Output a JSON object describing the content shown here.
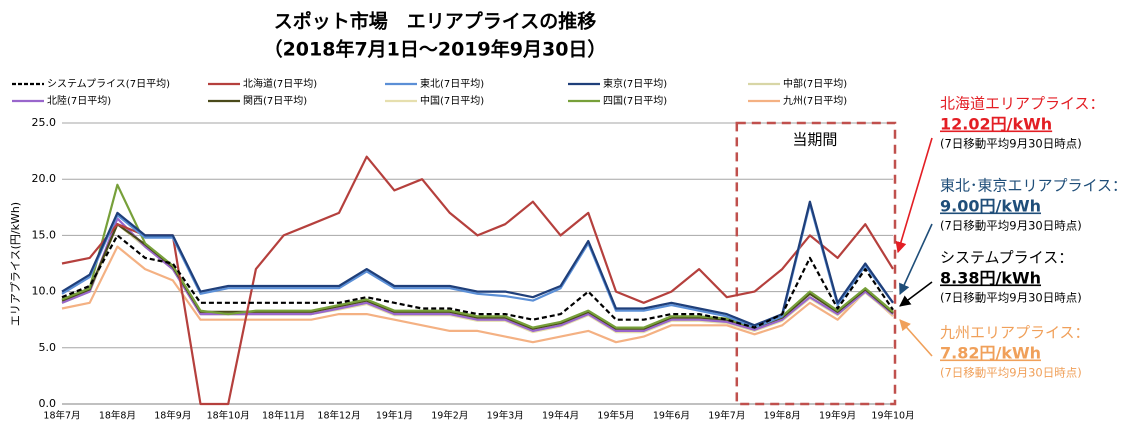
{
  "chart_data": {
    "type": "line",
    "title": "スポット市場　エリアプライスの推移",
    "subtitle": "（2018年7月1日～2019年9月30日）",
    "y_label": "エリアプライス(円/kWh)",
    "categories": [
      "18年7月",
      null,
      "18年8月",
      null,
      "18年9月",
      null,
      "18年10月",
      null,
      "18年11月",
      null,
      "18年12月",
      null,
      "19年1月",
      null,
      "19年2月",
      null,
      "19年3月",
      null,
      "19年4月",
      null,
      "19年5月",
      null,
      "19年6月",
      null,
      "19年7月",
      null,
      "19年8月",
      null,
      "19年9月",
      null,
      "19年10月"
    ],
    "ylim": [
      0,
      25
    ],
    "yticks": [
      {
        "value": 0,
        "label": "0.0"
      },
      {
        "value": 5,
        "label": "5.0"
      },
      {
        "value": 10,
        "label": "10.0"
      },
      {
        "value": 15,
        "label": "15.0"
      },
      {
        "value": 20,
        "label": "20.0"
      },
      {
        "value": 25,
        "label": "25.0"
      }
    ],
    "grid": true,
    "series": [
      {
        "name": "システムプライス(7日平均)",
        "color": "#000000",
        "dashed": true,
        "values": [
          9.5,
          10.5,
          15,
          13,
          12.5,
          9,
          9,
          9,
          9,
          9,
          9,
          9.5,
          9,
          8.5,
          8.5,
          8,
          8,
          7.5,
          8,
          10,
          7.5,
          7.5,
          8,
          8,
          7.5,
          6.8,
          8,
          13,
          8.5,
          12,
          8.38
        ]
      },
      {
        "name": "北海道(7日平均)",
        "color": "#b5403d",
        "values": [
          12.5,
          13,
          16,
          15,
          15,
          0,
          0,
          12,
          15,
          16,
          17,
          22,
          19,
          20,
          17,
          15,
          16,
          18,
          15,
          17,
          10,
          9,
          10,
          12,
          9.5,
          10,
          12,
          15,
          13,
          16,
          12.02
        ]
      },
      {
        "name": "東北(7日平均)",
        "color": "#5b8fd6",
        "values": [
          9.8,
          11.3,
          16.8,
          14.8,
          14.8,
          9.8,
          10.3,
          10.3,
          10.3,
          10.3,
          10.3,
          11.8,
          10.3,
          10.3,
          10.3,
          9.8,
          9.6,
          9.2,
          10.3,
          14.3,
          8.3,
          8.3,
          8.8,
          8.3,
          7.8,
          6.8,
          7.8,
          17.8,
          8.8,
          12.3,
          9.0
        ]
      },
      {
        "name": "東京(7日平均)",
        "color": "#1f3f7a",
        "values": [
          10,
          11.5,
          17,
          15,
          15,
          10,
          10.5,
          10.5,
          10.5,
          10.5,
          10.5,
          12,
          10.5,
          10.5,
          10.5,
          10,
          10,
          9.5,
          10.5,
          14.5,
          8.5,
          8.5,
          9,
          8.5,
          8,
          7,
          8,
          18,
          9,
          12.5,
          9.0
        ]
      },
      {
        "name": "中部(7日平均)",
        "color": "#d8d6a6",
        "values": [
          9,
          10,
          16,
          14,
          12,
          8,
          8,
          8,
          8,
          8,
          8.5,
          9,
          8,
          8,
          8,
          7.5,
          7.5,
          6.5,
          7,
          8,
          6.5,
          6.5,
          7.5,
          7.5,
          7.3,
          6.6,
          7.5,
          9.5,
          8,
          10,
          8
        ]
      },
      {
        "name": "北陸(7日平均)",
        "color": "#9966cc",
        "values": [
          9,
          10,
          16.5,
          14,
          12,
          8,
          8,
          8,
          8,
          8,
          8.5,
          9,
          8,
          8,
          8,
          7.5,
          7.5,
          6.5,
          7,
          8,
          6.5,
          6.5,
          7.5,
          7.5,
          7.3,
          6.6,
          7.5,
          9.5,
          8,
          10,
          8
        ]
      },
      {
        "name": "関西(7日平均)",
        "color": "#4a4a1a",
        "values": [
          9.2,
          10.2,
          16,
          14.2,
          12.2,
          8.2,
          8.2,
          8.2,
          8.2,
          8.2,
          8.7,
          9.2,
          8.2,
          8.2,
          8.2,
          7.7,
          7.7,
          6.7,
          7.2,
          8.2,
          6.7,
          6.7,
          7.7,
          7.7,
          7.5,
          6.8,
          7.7,
          9.8,
          8.2,
          10.2,
          8.1
        ]
      },
      {
        "name": "中国(7日平均)",
        "color": "#e6dfae",
        "values": [
          9,
          10,
          16,
          14,
          12,
          8,
          8,
          8,
          8,
          8,
          8.4,
          8.9,
          7.9,
          7.9,
          7.9,
          7.4,
          7.4,
          6.4,
          6.9,
          7.9,
          6.4,
          6.4,
          7.4,
          7.4,
          7.2,
          6.5,
          7.4,
          9.4,
          7.9,
          9.9,
          7.9
        ]
      },
      {
        "name": "四国(7日平均)",
        "color": "#77a03a",
        "values": [
          9.3,
          10.3,
          19.5,
          14.3,
          12.3,
          8.3,
          8,
          8.3,
          8.3,
          8.3,
          8.8,
          9.3,
          8.3,
          8.3,
          8.3,
          7.8,
          7.8,
          6.8,
          7.3,
          8.3,
          6.8,
          6.8,
          7.8,
          7.8,
          7.6,
          6.8,
          7.8,
          10,
          8.3,
          10.3,
          8.2
        ]
      },
      {
        "name": "九州(7日平均)",
        "color": "#f4b183",
        "values": [
          8.5,
          9,
          14,
          12,
          11,
          7.5,
          7.5,
          7.5,
          7.5,
          7.5,
          8,
          8,
          7.5,
          7,
          6.5,
          6.5,
          6,
          5.5,
          6,
          6.5,
          5.5,
          6,
          7,
          7,
          7,
          6.2,
          7,
          9,
          7.5,
          10,
          7.82
        ]
      }
    ],
    "period_label": "当期間",
    "annotations": [
      {
        "lines": [
          "北海道エリアプライス：",
          "12.02円/kWh",
          "(7日移動平均9月30日時点)"
        ],
        "color": "#e31e24"
      },
      {
        "lines": [
          "東北･東京エリアプライス：",
          "9.00円/kWh",
          "(7日移動平均9月30日時点)"
        ],
        "color": "#1f4e79"
      },
      {
        "lines": [
          "システムプライス：",
          "8.38円/kWh",
          "(7日移動平均9月30日時点)"
        ],
        "color": "#000000"
      },
      {
        "lines": [
          "九州エリアプライス：",
          "7.82円/kWh",
          "(7日移動平均9月30日時点)"
        ],
        "color": "#f0a05a"
      }
    ]
  }
}
